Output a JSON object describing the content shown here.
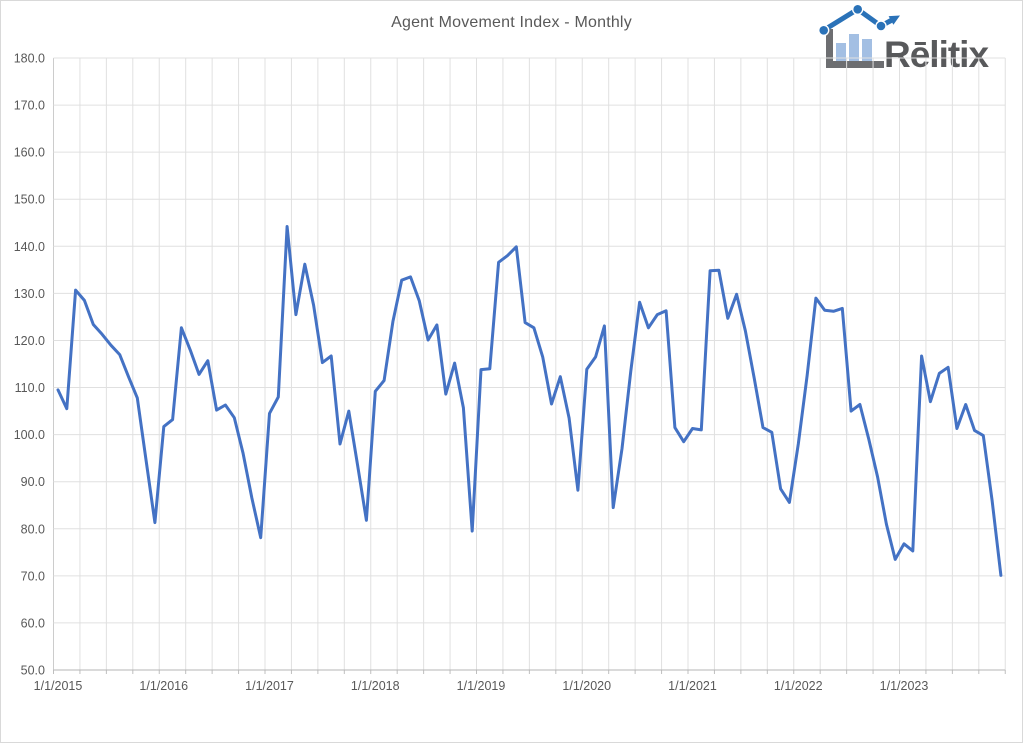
{
  "header": {
    "title": "Agent Movement Index - Monthly"
  },
  "logo": {
    "brand": "Rēlitix",
    "icon": "bar-chart-trend-arrow-icon",
    "bar_color": "#a3bfe3",
    "line_color": "#2a72b8",
    "text_color": "#58595b"
  },
  "chart_data": {
    "type": "line",
    "title": "Agent Movement Index - Monthly",
    "xlabel": "",
    "ylabel": "",
    "legend": "none",
    "grid": {
      "horizontal": "major-10",
      "vertical": "quarterly"
    },
    "ylim": [
      50,
      180
    ],
    "ytick_step": 10,
    "ytick_labels": [
      "50.0",
      "60.0",
      "70.0",
      "80.0",
      "90.0",
      "100.0",
      "110.0",
      "120.0",
      "130.0",
      "140.0",
      "150.0",
      "160.0",
      "170.0",
      "180.0"
    ],
    "x_start_month": "1/1/2015",
    "x_frequency": "monthly",
    "x_tick_labels": [
      "1/1/2015",
      "1/1/2016",
      "1/1/2017",
      "1/1/2018",
      "1/1/2019",
      "1/1/2020",
      "1/1/2021",
      "1/1/2022",
      "1/1/2023"
    ],
    "x_tick_month_indices": [
      0,
      12,
      24,
      36,
      48,
      60,
      72,
      84,
      96
    ],
    "series": [
      {
        "name": "Agent Movement Index",
        "color": "#4472C4",
        "values": [
          109.5,
          105.5,
          130.7,
          128.5,
          123.4,
          121.3,
          119.0,
          117.0,
          112.3,
          107.8,
          94.5,
          81.3,
          101.7,
          103.2,
          122.7,
          118.0,
          112.8,
          115.7,
          105.2,
          106.3,
          103.6,
          96.0,
          86.5,
          78.1,
          104.5,
          108.0,
          144.2,
          125.5,
          136.2,
          127.5,
          115.3,
          116.7,
          98.0,
          105.0,
          93.5,
          81.8,
          109.2,
          111.5,
          124.0,
          132.8,
          133.5,
          128.4,
          120.1,
          123.3,
          108.6,
          115.2,
          105.7,
          79.5,
          113.8,
          114.0,
          136.6,
          138.0,
          139.9,
          123.8,
          122.7,
          116.5,
          106.5,
          112.3,
          103.5,
          88.2,
          113.9,
          116.5,
          123.1,
          84.5,
          97.0,
          113.5,
          128.1,
          122.7,
          125.5,
          126.3,
          101.5,
          98.5,
          101.3,
          101.0,
          134.8,
          134.9,
          124.7,
          129.8,
          122.0,
          112.0,
          101.5,
          100.5,
          88.5,
          85.6,
          98.0,
          112.5,
          129.0,
          126.4,
          126.2,
          126.8,
          105.0,
          106.4,
          99.0,
          91.0,
          81.0,
          73.5,
          76.8,
          75.3,
          116.7,
          107.0,
          113.0,
          114.3,
          101.3,
          106.4,
          100.9,
          99.8,
          86.0,
          70.1
        ]
      }
    ],
    "axis_text_color": "#595959",
    "gridline_color": "#e0e0e0",
    "axis_line_color": "#bfbfbf"
  }
}
